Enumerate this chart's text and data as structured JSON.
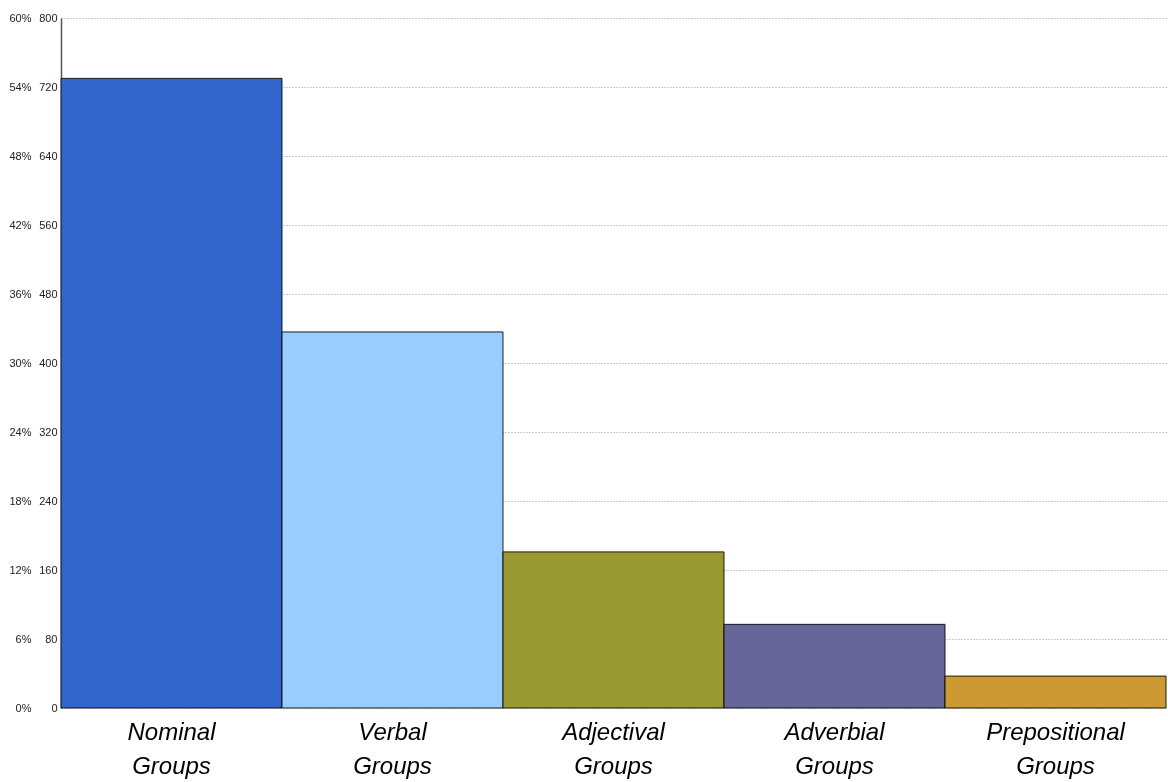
{
  "chart_data": {
    "type": "bar",
    "categories": [
      "Nominal Groups",
      "Verbal Groups",
      "Adjectival Groups",
      "Adverbial Groups",
      "Prepositional Groups"
    ],
    "values": [
      730,
      436,
      181,
      97,
      37
    ],
    "colors": [
      "#3366cc",
      "#99ccff",
      "#999933",
      "#666699",
      "#cc9933"
    ],
    "ylim": [
      0,
      800
    ],
    "yticks": [
      0,
      80,
      160,
      240,
      320,
      400,
      480,
      560,
      640,
      720,
      800
    ],
    "y2lim": [
      0,
      60
    ],
    "y2ticks": [
      {
        "value": 0,
        "label": "0%"
      },
      {
        "value": 6,
        "label": "6%"
      },
      {
        "value": 12,
        "label": "12%"
      },
      {
        "value": 18,
        "label": "18%"
      },
      {
        "value": 24,
        "label": "24%"
      },
      {
        "value": 30,
        "label": "30%"
      },
      {
        "value": 36,
        "label": "36%"
      },
      {
        "value": 42,
        "label": "42%"
      },
      {
        "value": 48,
        "label": "48%"
      },
      {
        "value": 54,
        "label": "54%"
      },
      {
        "value": 60,
        "label": "60%"
      }
    ],
    "grid": "y"
  }
}
